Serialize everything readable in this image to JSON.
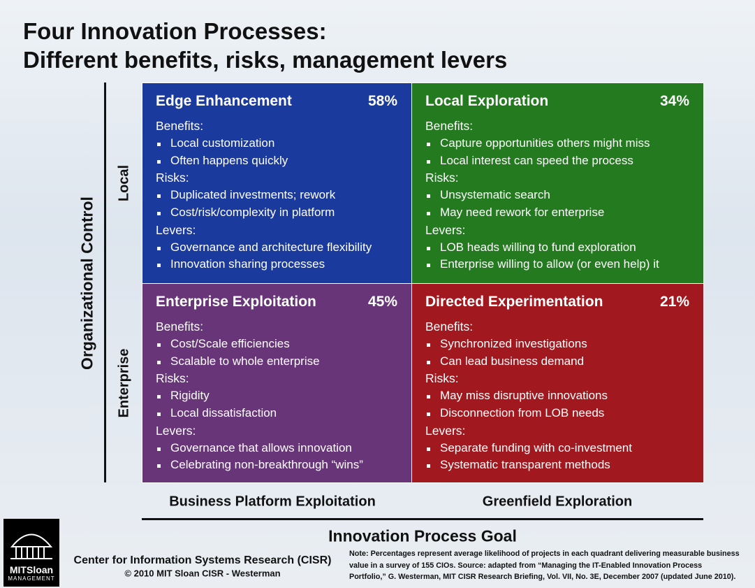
{
  "header": {
    "title_line1": "Four Innovation Processes:",
    "title_line2": "Different benefits, risks, management levers"
  },
  "axes": {
    "vertical": "Organizational Control",
    "vertical_top": "Local",
    "vertical_bottom": "Enterprise",
    "horizontal": "Innovation Process Goal",
    "horizontal_left": "Business Platform Exploitation",
    "horizontal_right": "Greenfield Exploration"
  },
  "quadrants": [
    {
      "title": "Edge Enhancement",
      "percent": "58%",
      "sections": [
        {
          "heading": "Benefits:",
          "items": [
            "Local customization",
            "Often happens quickly"
          ]
        },
        {
          "heading": "Risks:",
          "items": [
            "Duplicated investments; rework",
            "Cost/risk/complexity  in platform"
          ]
        },
        {
          "heading": "Levers:",
          "items": [
            "Governance and architecture flexibility",
            "Innovation sharing processes"
          ]
        }
      ]
    },
    {
      "title": "Local Exploration",
      "percent": "34%",
      "sections": [
        {
          "heading": "Benefits:",
          "items": [
            "Capture opportunities others might miss",
            "Local interest can speed the process"
          ]
        },
        {
          "heading": "Risks:",
          "items": [
            "Unsystematic search",
            "May need rework for enterprise"
          ]
        },
        {
          "heading": "Levers:",
          "items": [
            "LOB heads willing to fund exploration",
            "Enterprise willing to allow (or even help) it"
          ]
        }
      ]
    },
    {
      "title": "Enterprise Exploitation",
      "percent": "45%",
      "sections": [
        {
          "heading": "Benefits:",
          "items": [
            "Cost/Scale efficiencies",
            "Scalable to whole enterprise"
          ]
        },
        {
          "heading": "Risks:",
          "items": [
            "Rigidity",
            "Local dissatisfaction"
          ]
        },
        {
          "heading": "Levers:",
          "items": [
            "Governance that allows innovation",
            "Celebrating non-breakthrough “wins”"
          ]
        }
      ]
    },
    {
      "title": "Directed Experimentation",
      "percent": "21%",
      "sections": [
        {
          "heading": "Benefits:",
          "items": [
            "Synchronized  investigations",
            "Can lead business demand"
          ]
        },
        {
          "heading": "Risks:",
          "items": [
            "May miss disruptive innovations",
            "Disconnection from LOB needs"
          ]
        },
        {
          "heading": "Levers:",
          "items": [
            "Separate funding with co-investment",
            "Systematic transparent methods"
          ]
        }
      ]
    }
  ],
  "footer": {
    "org": "Center for Information Systems Research (CISR)",
    "copyright": "© 2010 MIT Sloan CISR - Westerman",
    "note": "Note:  Percentages represent average likelihood of projects in each quadrant delivering measurable business value in a survey of 155 CIOs. Source: adapted from “Managing the IT-Enabled Innovation Process Portfolio,” G. Westerman, MIT CISR Research Briefing, Vol. VII, No. 3E, December 2007 (updated June 2010).",
    "logo_name": "MITSloan",
    "logo_sub": "MANAGEMENT"
  }
}
